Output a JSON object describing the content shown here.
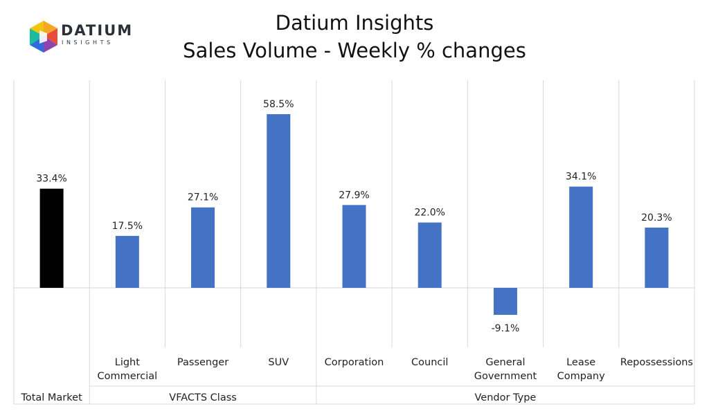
{
  "title": "Datium Insights",
  "subtitle": "Sales Volume - Weekly % changes",
  "logo": {
    "word": "DATIUM",
    "sub": "INSIGHTS"
  },
  "colors": {
    "total": "#000000",
    "series": "#4472c4",
    "grid": "#d9d9d9"
  },
  "chart_data": {
    "type": "bar",
    "title": "Datium Insights\nSales Volume - Weekly % changes",
    "categories": [
      "",
      "Light Commercial",
      "Passenger",
      "SUV",
      "Corporation",
      "Council",
      "General Government",
      "Lease Company",
      "Repossessions"
    ],
    "category_lines": [
      [],
      [
        "Light",
        "Commercial"
      ],
      [
        "Passenger"
      ],
      [
        "SUV"
      ],
      [
        "Corporation"
      ],
      [
        "Council"
      ],
      [
        "General",
        "Government"
      ],
      [
        "Lease",
        "Company"
      ],
      [
        "Repossessions"
      ]
    ],
    "values": [
      33.4,
      17.5,
      27.1,
      58.5,
      27.9,
      22.0,
      -9.1,
      34.1,
      20.3
    ],
    "data_labels": [
      "33.4%",
      "17.5%",
      "27.1%",
      "58.5%",
      "27.9%",
      "22.0%",
      "-9.1%",
      "34.1%",
      "20.3%"
    ],
    "groups": [
      {
        "name": "Total Market",
        "start": 0,
        "end": 0
      },
      {
        "name": "VFACTS Class",
        "start": 1,
        "end": 3
      },
      {
        "name": "Vendor Type",
        "start": 4,
        "end": 8
      }
    ],
    "ylim": [
      -23,
      70
    ],
    "grid": true,
    "legend": "none"
  }
}
